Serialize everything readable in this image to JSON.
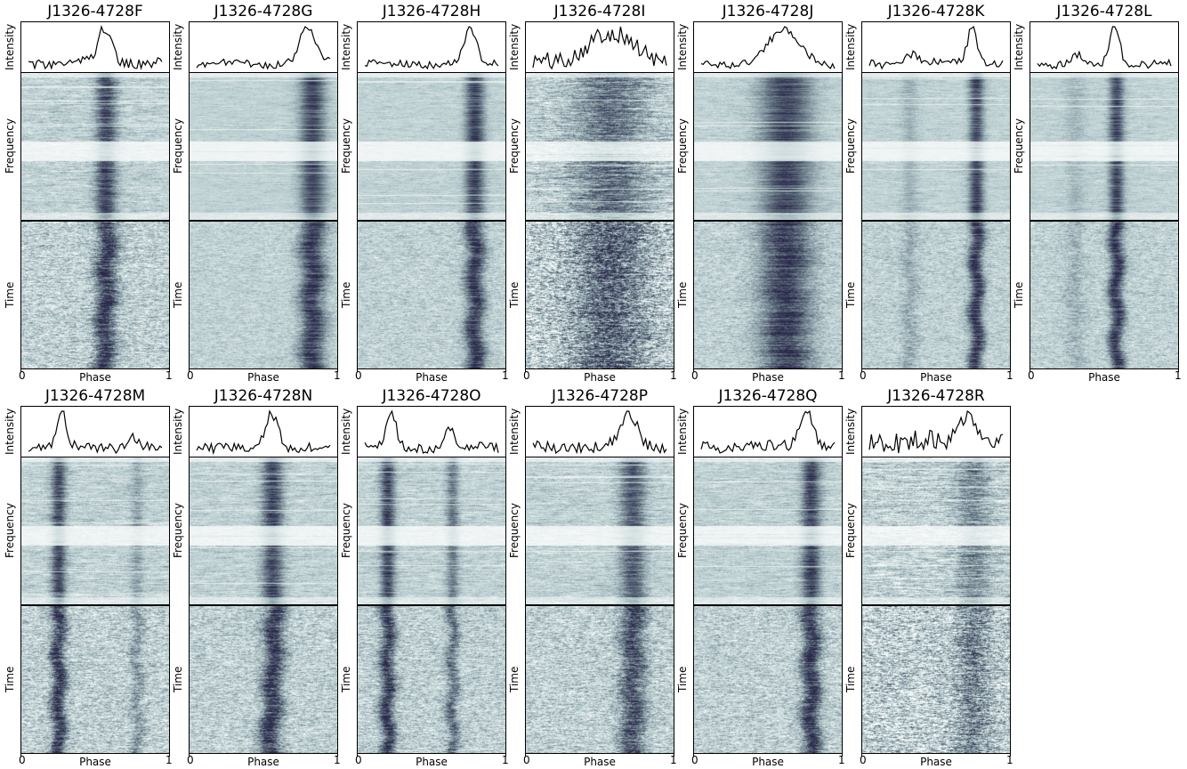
{
  "figure": {
    "columns": 7,
    "colormap": [
      "#ffffff",
      "#b9cdcf",
      "#667684",
      "#2a2a4a"
    ]
  },
  "chart_data": [
    {
      "type": "heatmap",
      "title": "J1326-4728F",
      "ylabels": [
        "Intensity",
        "Frequency",
        "Time"
      ],
      "xlabel": "Phase",
      "xlim": [
        0,
        1
      ],
      "xticks": [
        "0",
        "1"
      ],
      "pulse_phase": [
        0.57
      ],
      "pulse_width": [
        0.05
      ],
      "pulse_strength": [
        1.0
      ],
      "snr": "medium",
      "freq_drift": -0.02,
      "noise_level": 0.55
    },
    {
      "type": "heatmap",
      "title": "J1326-4728G",
      "ylabels": [
        "Intensity",
        "Frequency",
        "Time"
      ],
      "xlabel": "Phase",
      "xlim": [
        0,
        1
      ],
      "xticks": [
        "0",
        "1"
      ],
      "pulse_phase": [
        0.83
      ],
      "pulse_width": [
        0.06
      ],
      "pulse_strength": [
        1.0
      ],
      "snr": "high",
      "freq_drift": 0.0,
      "noise_level": 0.3
    },
    {
      "type": "heatmap",
      "title": "J1326-4728H",
      "ylabels": [
        "Intensity",
        "Frequency",
        "Time"
      ],
      "xlabel": "Phase",
      "xlim": [
        0,
        1
      ],
      "xticks": [
        "0",
        "1"
      ],
      "pulse_phase": [
        0.79
      ],
      "pulse_width": [
        0.045
      ],
      "pulse_strength": [
        1.0
      ],
      "snr": "high",
      "freq_drift": 0.0,
      "noise_level": 0.35
    },
    {
      "type": "heatmap",
      "title": "J1326-4728I",
      "ylabels": [
        "Intensity",
        "Frequency",
        "Time"
      ],
      "xlabel": "Phase",
      "xlim": [
        0,
        1
      ],
      "xticks": [
        "0",
        "1"
      ],
      "pulse_phase": [
        0.57
      ],
      "pulse_width": [
        0.17
      ],
      "pulse_strength": [
        0.7
      ],
      "snr": "low",
      "freq_drift": 0.0,
      "noise_level": 0.9
    },
    {
      "type": "heatmap",
      "title": "J1326-4728J",
      "ylabels": [
        "Intensity",
        "Frequency",
        "Time"
      ],
      "xlabel": "Phase",
      "xlim": [
        0,
        1
      ],
      "xticks": [
        "0",
        "1"
      ],
      "pulse_phase": [
        0.62
      ],
      "pulse_width": [
        0.12
      ],
      "pulse_strength": [
        1.0
      ],
      "snr": "high",
      "freq_drift": 0.0,
      "noise_level": 0.35
    },
    {
      "type": "heatmap",
      "title": "J1326-4728K",
      "ylabels": [
        "Intensity",
        "Frequency",
        "Time"
      ],
      "xlabel": "Phase",
      "xlim": [
        0,
        1
      ],
      "xticks": [
        "0",
        "1"
      ],
      "pulse_phase": [
        0.77,
        0.32
      ],
      "pulse_width": [
        0.035,
        0.04
      ],
      "pulse_strength": [
        1.0,
        0.25
      ],
      "snr": "high",
      "freq_drift": 0.0,
      "noise_level": 0.35
    },
    {
      "type": "heatmap",
      "title": "J1326-4728L",
      "ylabels": [
        "Intensity",
        "Frequency",
        "Time"
      ],
      "xlabel": "Phase",
      "xlim": [
        0,
        1
      ],
      "xticks": [
        "0",
        "1"
      ],
      "pulse_phase": [
        0.58,
        0.3
      ],
      "pulse_width": [
        0.035,
        0.05
      ],
      "pulse_strength": [
        1.0,
        0.2
      ],
      "snr": "high",
      "freq_drift": 0.0,
      "noise_level": 0.35
    },
    {
      "type": "heatmap",
      "title": "J1326-4728M",
      "ylabels": [
        "Intensity",
        "Frequency",
        "Time"
      ],
      "xlabel": "Phase",
      "xlim": [
        0,
        1
      ],
      "xticks": [
        "0",
        "1"
      ],
      "pulse_phase": [
        0.25,
        0.78
      ],
      "pulse_width": [
        0.035,
        0.03
      ],
      "pulse_strength": [
        1.0,
        0.35
      ],
      "snr": "medium",
      "freq_drift": 0.0,
      "noise_level": 0.55
    },
    {
      "type": "heatmap",
      "title": "J1326-4728N",
      "ylabels": [
        "Intensity",
        "Frequency",
        "Time"
      ],
      "xlabel": "Phase",
      "xlim": [
        0,
        1
      ],
      "xticks": [
        "0",
        "1"
      ],
      "pulse_phase": [
        0.56
      ],
      "pulse_width": [
        0.05
      ],
      "pulse_strength": [
        1.0
      ],
      "snr": "medium",
      "freq_drift": -0.04,
      "noise_level": 0.5
    },
    {
      "type": "heatmap",
      "title": "J1326-4728O",
      "ylabels": [
        "Intensity",
        "Frequency",
        "Time"
      ],
      "xlabel": "Phase",
      "xlim": [
        0,
        1
      ],
      "xticks": [
        "0",
        "1"
      ],
      "pulse_phase": [
        0.2,
        0.64
      ],
      "pulse_width": [
        0.035,
        0.03
      ],
      "pulse_strength": [
        1.0,
        0.6
      ],
      "snr": "medium",
      "freq_drift": 0.0,
      "noise_level": 0.5
    },
    {
      "type": "heatmap",
      "title": "J1326-4728P",
      "ylabels": [
        "Intensity",
        "Frequency",
        "Time"
      ],
      "xlabel": "Phase",
      "xlim": [
        0,
        1
      ],
      "xticks": [
        "0",
        "1"
      ],
      "pulse_phase": [
        0.72
      ],
      "pulse_width": [
        0.06
      ],
      "pulse_strength": [
        0.85
      ],
      "snr": "medium",
      "freq_drift": 0.0,
      "noise_level": 0.55
    },
    {
      "type": "heatmap",
      "title": "J1326-4728Q",
      "ylabels": [
        "Intensity",
        "Frequency",
        "Time"
      ],
      "xlabel": "Phase",
      "xlim": [
        0,
        1
      ],
      "xticks": [
        "0",
        "1"
      ],
      "pulse_phase": [
        0.79
      ],
      "pulse_width": [
        0.045
      ],
      "pulse_strength": [
        1.0
      ],
      "snr": "medium",
      "freq_drift": 0.0,
      "noise_level": 0.5
    },
    {
      "type": "heatmap",
      "title": "J1326-4728R",
      "ylabels": [
        "Intensity",
        "Frequency",
        "Time"
      ],
      "xlabel": "Phase",
      "xlim": [
        0,
        1
      ],
      "xticks": [
        "0",
        "1"
      ],
      "pulse_phase": [
        0.75
      ],
      "pulse_width": [
        0.08
      ],
      "pulse_strength": [
        0.5
      ],
      "snr": "low",
      "freq_drift": 0.0,
      "noise_level": 0.85
    }
  ]
}
